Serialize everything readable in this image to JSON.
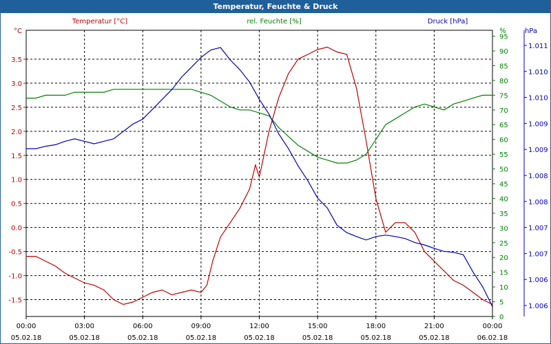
{
  "window": {
    "title": "Temperatur, Feuchte & Druck"
  },
  "colors": {
    "temperature": "#c00000",
    "humidity": "#008000",
    "pressure": "#0000b0",
    "title_bar": "#1f5f9a"
  },
  "chart_data": {
    "type": "line",
    "title": "Temperatur, Feuchte & Druck",
    "grid": true,
    "x_ticks": [
      {
        "time": "00:00",
        "date": "05.02.18"
      },
      {
        "time": "03:00",
        "date": "05.02.18"
      },
      {
        "time": "06:00",
        "date": "05.02.18"
      },
      {
        "time": "09:00",
        "date": "05.02.18"
      },
      {
        "time": "12:00",
        "date": "05.02.18"
      },
      {
        "time": "15:00",
        "date": "05.02.18"
      },
      {
        "time": "18:00",
        "date": "05.02.18"
      },
      {
        "time": "21:00",
        "date": "05.02.18"
      },
      {
        "time": "00:00",
        "date": "06.02.18"
      }
    ],
    "x_unit_note": "hours",
    "axes": {
      "temperature": {
        "label": "Temperatur [°C]",
        "unit": "°C",
        "ylim": [
          -1.85,
          4.1
        ],
        "ticks": [
          "3.5",
          "3.0",
          "2.5",
          "2.0",
          "1.5",
          "1.0",
          "0.5",
          "0.0",
          "-0.5",
          "-1.0",
          "-1.5"
        ]
      },
      "humidity": {
        "label": "rel. Feuchte [%]",
        "unit": "%",
        "ylim": [
          0,
          97
        ],
        "ticks": [
          "95",
          "90",
          "85",
          "80",
          "75",
          "70",
          "65",
          "60",
          "55",
          "50",
          "45",
          "40",
          "35",
          "30",
          "25",
          "20",
          "15",
          "10",
          "5",
          "0"
        ]
      },
      "pressure": {
        "label": "Druck [hPa]",
        "unit": "hPa",
        "ylim": [
          1.0055,
          1.0113
        ],
        "ticks": [
          "1.011",
          "1.010",
          "1.010",
          "1.009",
          "1.009",
          "1.008",
          "1.008",
          "1.007",
          "1.007",
          "1.006",
          "1.006"
        ]
      }
    },
    "series": [
      {
        "name": "Temperatur [°C]",
        "axis": "temperature",
        "x": [
          0,
          0.5,
          1,
          1.5,
          2,
          2.5,
          3,
          3.5,
          4,
          4.5,
          5,
          5.5,
          6,
          6.5,
          7,
          7.5,
          8,
          8.5,
          9,
          9.3,
          9.6,
          10,
          10.5,
          11,
          11.5,
          11.8,
          12,
          12.5,
          13,
          13.5,
          14,
          14.5,
          15,
          15.5,
          16,
          16.5,
          17,
          17.5,
          18,
          18.5,
          19,
          19.5,
          20,
          20.5,
          21,
          21.5,
          22,
          22.5,
          23,
          23.5,
          24
        ],
        "values": [
          -0.6,
          -0.6,
          -0.7,
          -0.8,
          -0.95,
          -1.05,
          -1.15,
          -1.2,
          -1.3,
          -1.5,
          -1.6,
          -1.55,
          -1.45,
          -1.35,
          -1.3,
          -1.4,
          -1.35,
          -1.3,
          -1.35,
          -1.2,
          -0.7,
          -0.2,
          0.1,
          0.4,
          0.8,
          1.3,
          1.05,
          2.0,
          2.7,
          3.2,
          3.5,
          3.6,
          3.7,
          3.75,
          3.65,
          3.6,
          2.9,
          1.8,
          0.6,
          -0.1,
          0.1,
          0.1,
          -0.1,
          -0.5,
          -0.7,
          -0.9,
          -1.1,
          -1.2,
          -1.35,
          -1.5,
          -1.6
        ]
      },
      {
        "name": "rel. Feuchte [%]",
        "axis": "humidity",
        "x": [
          0,
          0.5,
          1,
          1.5,
          2,
          2.5,
          3,
          3.5,
          4,
          4.5,
          5,
          5.5,
          6,
          6.5,
          7,
          7.5,
          8,
          8.5,
          9,
          9.5,
          10,
          10.5,
          11,
          11.5,
          12,
          12.5,
          13,
          13.5,
          14,
          14.5,
          15,
          15.5,
          16,
          16.5,
          17,
          17.5,
          18,
          18.5,
          19,
          19.5,
          20,
          20.5,
          21,
          21.5,
          22,
          22.5,
          23,
          23.5,
          24
        ],
        "values": [
          74,
          74,
          75,
          75,
          75,
          76,
          76,
          76,
          76,
          77,
          77,
          77,
          77,
          77,
          77,
          77,
          77,
          77,
          76,
          75,
          73,
          71,
          70,
          70,
          69,
          68,
          64,
          61,
          58,
          56,
          54,
          53,
          52,
          52,
          53,
          55,
          60,
          65,
          67,
          69,
          71,
          72,
          71,
          70,
          72,
          73,
          74,
          75,
          75
        ]
      },
      {
        "name": "Druck [hPa]",
        "axis": "pressure",
        "x": [
          0,
          0.5,
          1,
          1.5,
          2,
          2.5,
          3,
          3.5,
          4,
          4.5,
          5,
          5.5,
          6,
          6.5,
          7,
          7.5,
          8,
          8.5,
          9,
          9.5,
          10,
          10.5,
          11,
          11.5,
          12,
          12.5,
          13,
          13.5,
          14,
          14.5,
          15,
          15.5,
          16,
          16.5,
          17,
          17.5,
          18,
          18.5,
          19,
          19.5,
          20,
          20.5,
          21,
          21.5,
          22,
          22.5,
          23,
          23.5,
          24
        ],
        "values": [
          1.0089,
          1.0089,
          1.00895,
          1.00898,
          1.00905,
          1.0091,
          1.00905,
          1.009,
          1.00905,
          1.0091,
          1.00925,
          1.0094,
          1.0095,
          1.0097,
          1.0099,
          1.0101,
          1.01035,
          1.01055,
          1.01075,
          1.0109,
          1.01095,
          1.0107,
          1.0105,
          1.01025,
          1.0099,
          1.0096,
          1.0092,
          1.0089,
          1.00855,
          1.00825,
          1.0079,
          1.0077,
          1.00735,
          1.0072,
          1.00712,
          1.00705,
          1.00712,
          1.00715,
          1.00712,
          1.00708,
          1.007,
          1.00695,
          1.00688,
          1.00682,
          1.0068,
          1.00675,
          1.0064,
          1.0061,
          1.0057
        ]
      }
    ]
  }
}
